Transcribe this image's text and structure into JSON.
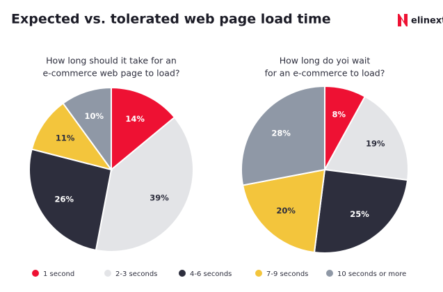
{
  "title": "Expected vs. tolerated web page load time",
  "logo": "elinext",
  "legend": [
    {
      "name": "1 second",
      "color": "#ee1133"
    },
    {
      "name": "2-3 seconds",
      "color": "#e3e4e7"
    },
    {
      "name": "4-6 seconds",
      "color": "#2d2e3d"
    },
    {
      "name": "7-9 seconds",
      "color": "#f3c53c"
    },
    {
      "name": "10 seconds or more",
      "color": "#8f98a6"
    }
  ],
  "chart_data": [
    {
      "type": "pie",
      "title": [
        "How long should it take for an",
        "e-commerce web page to load?"
      ],
      "values": [
        14,
        39,
        26,
        11,
        10
      ],
      "value_labels": [
        "14%",
        "39%",
        "26%",
        "11%",
        "10%"
      ]
    },
    {
      "type": "pie",
      "title": [
        "How long do yoi wait",
        "for an e-commerce to load?"
      ],
      "values": [
        8,
        19,
        25,
        20,
        28
      ],
      "value_labels": [
        "8%",
        "19%",
        "25%",
        "20%",
        "28%"
      ]
    }
  ]
}
